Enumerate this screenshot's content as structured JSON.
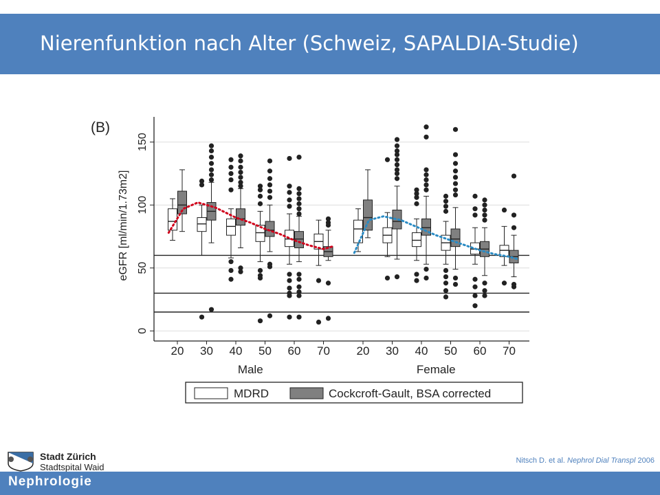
{
  "slide": {
    "title": "Nierenfunktion nach Alter (Schweiz, SAPALDIA-Studie)",
    "footer": "Nephrologie",
    "logo_name": "Stadt Zürich",
    "logo_sub": "Stadtspital Waid",
    "citation_prefix": "Nitsch D. et al. ",
    "citation_journal": "Nephrol Dial Transpl",
    "citation_year": " 2006",
    "colors": {
      "bar": "#4f81bd",
      "male_trend": "#d0021b",
      "female_trend": "#2a8bc4",
      "mdrd_fill": "#ffffff",
      "cg_fill": "#808080"
    }
  },
  "chart_data": {
    "type": "box",
    "panel_label": "(B)",
    "ylabel": "eGFR [ml/min/1.73m2]",
    "ylim": [
      -8,
      170
    ],
    "yticks": [
      0,
      50,
      100,
      150
    ],
    "reference_lines": [
      60,
      30,
      15
    ],
    "grid": true,
    "legend_position": "bottom",
    "groups": [
      {
        "name": "Male",
        "age_labels": [
          "20",
          "30",
          "40",
          "50",
          "60",
          "70"
        ],
        "series": [
          {
            "name": "MDRD",
            "boxes": [
              {
                "whisker_low": 72,
                "q1": 80,
                "median": 87,
                "q3": 97,
                "whisker_high": 105,
                "outliers": []
              },
              {
                "whisker_low": 60,
                "q1": 79,
                "median": 85,
                "q3": 90,
                "whisker_high": 100,
                "outliers": [
                  116,
                  119,
                  11
                ]
              },
              {
                "whisker_low": 58,
                "q1": 76,
                "median": 83,
                "q3": 89,
                "whisker_high": 97,
                "outliers": [
                  136,
                  130,
                  125,
                  120,
                  112,
                  55,
                  48,
                  41
                ]
              },
              {
                "whisker_low": 55,
                "q1": 71,
                "median": 78,
                "q3": 84,
                "whisker_high": 95,
                "outliers": [
                  115,
                  112,
                  107,
                  101,
                  48,
                  44,
                  42,
                  8
                ]
              },
              {
                "whisker_low": 53,
                "q1": 67,
                "median": 73,
                "q3": 80,
                "whisker_high": 93,
                "outliers": [
                  137,
                  115,
                  110,
                  104,
                  99,
                  45,
                  40,
                  34,
                  30,
                  28,
                  11
                ]
              },
              {
                "whisker_low": 52,
                "q1": 65,
                "median": 71,
                "q3": 77,
                "whisker_high": 88,
                "outliers": [
                  40,
                  7
                ]
              }
            ]
          },
          {
            "name": "Cockcroft-Gault, BSA corrected",
            "boxes": [
              {
                "whisker_low": 79,
                "q1": 93,
                "median": 100,
                "q3": 111,
                "whisker_high": 128,
                "outliers": []
              },
              {
                "whisker_low": 70,
                "q1": 88,
                "median": 95,
                "q3": 102,
                "whisker_high": 118,
                "outliers": [
                  147,
                  143,
                  138,
                  133,
                  128,
                  124,
                  120,
                  17
                ]
              },
              {
                "whisker_low": 66,
                "q1": 84,
                "median": 89,
                "q3": 97,
                "whisker_high": 113,
                "outliers": [
                  139,
                  135,
                  130,
                  126,
                  122,
                  118,
                  115,
                  50,
                  47
                ]
              },
              {
                "whisker_low": 63,
                "q1": 75,
                "median": 80,
                "q3": 87,
                "whisker_high": 100,
                "outliers": [
                  135,
                  127,
                  121,
                  116,
                  111,
                  106,
                  53,
                  51,
                  12
                ]
              },
              {
                "whisker_low": 55,
                "q1": 66,
                "median": 73,
                "q3": 79,
                "whisker_high": 91,
                "outliers": [
                  138,
                  113,
                  109,
                  105,
                  101,
                  97,
                  93,
                  45,
                  41,
                  35,
                  31,
                  28,
                  11
                ]
              },
              {
                "whisker_low": 56,
                "q1": 59,
                "median": 63,
                "q3": 67,
                "whisker_high": 80,
                "outliers": [
                  89,
                  86,
                  84,
                  38,
                  10
                ]
              }
            ]
          }
        ],
        "trend": [
          [
            17,
            78
          ],
          [
            22,
            97
          ],
          [
            27,
            102
          ],
          [
            33,
            98
          ],
          [
            40,
            90
          ],
          [
            45,
            86
          ],
          [
            50,
            81
          ],
          [
            55,
            77
          ],
          [
            60,
            72
          ],
          [
            65,
            68
          ],
          [
            70,
            65
          ],
          [
            73,
            67
          ]
        ]
      },
      {
        "name": "Female",
        "age_labels": [
          "20",
          "30",
          "40",
          "50",
          "60",
          "70"
        ],
        "series": [
          {
            "name": "MDRD",
            "boxes": [
              {
                "whisker_low": 63,
                "q1": 70,
                "median": 81,
                "q3": 88,
                "whisker_high": 97,
                "outliers": []
              },
              {
                "whisker_low": 59,
                "q1": 70,
                "median": 76,
                "q3": 82,
                "whisker_high": 94,
                "outliers": [
                  136,
                  42
                ]
              },
              {
                "whisker_low": 56,
                "q1": 67,
                "median": 72,
                "q3": 78,
                "whisker_high": 89,
                "outliers": [
                  112,
                  109,
                  106,
                  101,
                  45,
                  40
                ]
              },
              {
                "whisker_low": 53,
                "q1": 64,
                "median": 70,
                "q3": 76,
                "whisker_high": 87,
                "outliers": [
                  107,
                  103,
                  99,
                  95,
                  48,
                  43,
                  38,
                  32,
                  27
                ]
              },
              {
                "whisker_low": 53,
                "q1": 61,
                "median": 65,
                "q3": 70,
                "whisker_high": 82,
                "outliers": [
                  107,
                  97,
                  92,
                  41,
                  35,
                  28,
                  20
                ]
              },
              {
                "whisker_low": 52,
                "q1": 59,
                "median": 64,
                "q3": 68,
                "whisker_high": 83,
                "outliers": [
                  96,
                  38
                ]
              }
            ]
          },
          {
            "name": "Cockcroft-Gault, BSA corrected",
            "boxes": [
              {
                "whisker_low": 74,
                "q1": 80,
                "median": 90,
                "q3": 104,
                "whisker_high": 128,
                "outliers": []
              },
              {
                "whisker_low": 57,
                "q1": 81,
                "median": 87,
                "q3": 96,
                "whisker_high": 115,
                "outliers": [
                  152,
                  147,
                  143,
                  140,
                  136,
                  132,
                  128,
                  125,
                  121,
                  43
                ]
              },
              {
                "whisker_low": 53,
                "q1": 76,
                "median": 82,
                "q3": 89,
                "whisker_high": 107,
                "outliers": [
                  162,
                  154,
                  128,
                  124,
                  120,
                  116,
                  112,
                  49,
                  42
                ]
              },
              {
                "whisker_low": 49,
                "q1": 67,
                "median": 73,
                "q3": 81,
                "whisker_high": 98,
                "outliers": [
                  160,
                  140,
                  133,
                  127,
                  122,
                  117,
                  112,
                  108,
                  42,
                  37
                ]
              },
              {
                "whisker_low": 44,
                "q1": 59,
                "median": 65,
                "q3": 71,
                "whisker_high": 82,
                "outliers": [
                  104,
                  100,
                  96,
                  92,
                  88,
                  38,
                  32,
                  28
                ]
              },
              {
                "whisker_low": 43,
                "q1": 54,
                "median": 59,
                "q3": 64,
                "whisker_high": 76,
                "outliers": [
                  123,
                  92,
                  82,
                  37,
                  35
                ]
              }
            ]
          }
        ],
        "trend": [
          [
            17,
            62
          ],
          [
            22,
            88
          ],
          [
            27,
            91
          ],
          [
            33,
            88
          ],
          [
            40,
            81
          ],
          [
            45,
            76
          ],
          [
            50,
            72
          ],
          [
            55,
            68
          ],
          [
            60,
            64
          ],
          [
            65,
            61
          ],
          [
            70,
            59
          ],
          [
            73,
            57
          ]
        ]
      }
    ]
  }
}
